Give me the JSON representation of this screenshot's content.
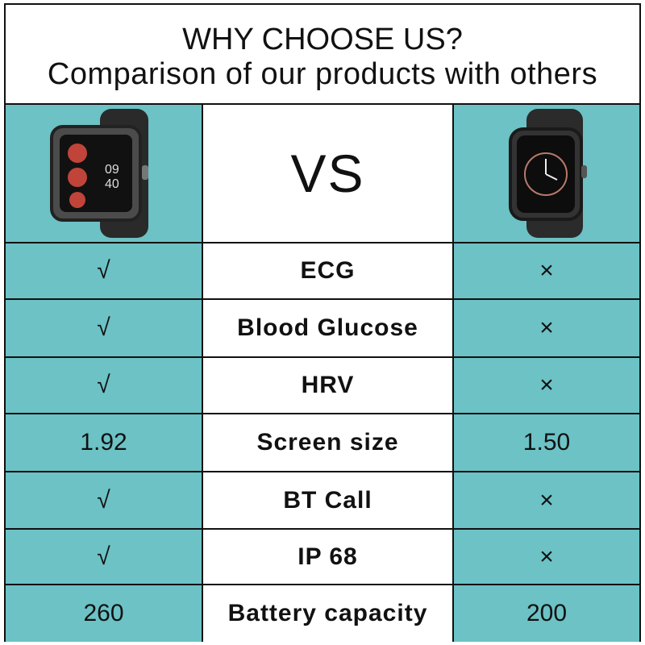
{
  "header": {
    "title": "WHY CHOOSE US?",
    "subtitle": "Comparison of our products with others"
  },
  "table": {
    "vs": "VS",
    "rows": [
      [
        "√",
        "ECG",
        "×"
      ],
      [
        "√",
        "Blood Glucose",
        "×"
      ],
      [
        "√",
        "HRV",
        "×"
      ],
      [
        "1.92",
        "Screen size",
        "1.50"
      ],
      [
        "√",
        "BT Call",
        "×"
      ],
      [
        "√",
        "IP 68",
        "×"
      ],
      [
        "260",
        "Battery capacity",
        "200"
      ]
    ]
  }
}
